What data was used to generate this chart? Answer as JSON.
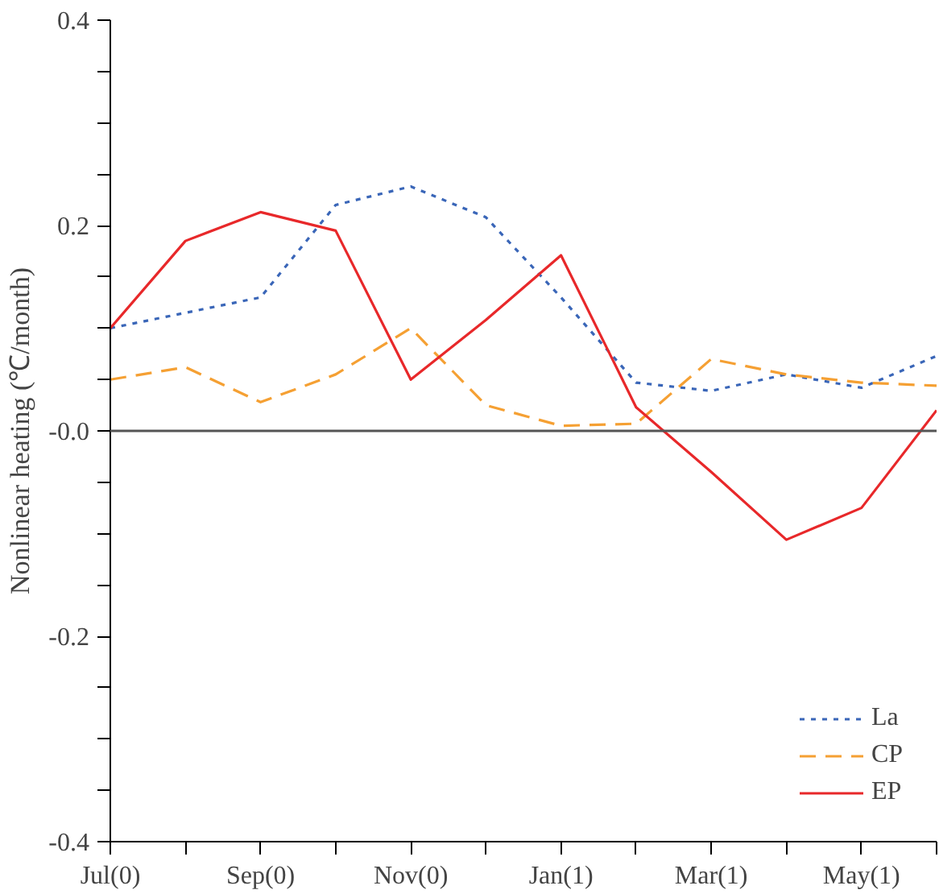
{
  "chart_data": {
    "type": "line",
    "ylabel": "Nonlinear heating (℃/month)",
    "categories": [
      "Jul(0)",
      null,
      "Sep(0)",
      null,
      "Nov(0)",
      null,
      "Jan(1)",
      null,
      "Mar(1)",
      null,
      "May(1)",
      null
    ],
    "ylim": [
      -0.4,
      0.4
    ],
    "yticks": [
      {
        "value": 0.4,
        "label": "0.4"
      },
      {
        "value": 0.35,
        "label": null
      },
      {
        "value": 0.3,
        "label": null
      },
      {
        "value": 0.25,
        "label": null
      },
      {
        "value": 0.2,
        "label": "0.2"
      },
      {
        "value": 0.15,
        "label": null
      },
      {
        "value": 0.1,
        "label": null
      },
      {
        "value": 0.05,
        "label": null
      },
      {
        "value": 0,
        "label": "-0.0"
      },
      {
        "value": -0.05,
        "label": null
      },
      {
        "value": -0.1,
        "label": null
      },
      {
        "value": -0.15,
        "label": null
      },
      {
        "value": -0.2,
        "label": "-0.2"
      },
      {
        "value": -0.25,
        "label": null
      },
      {
        "value": -0.3,
        "label": null
      },
      {
        "value": -0.35,
        "label": null
      },
      {
        "value": -0.4,
        "label": "-0.4"
      }
    ],
    "grid": false,
    "legend": "bottom right",
    "ref_lines": [
      {
        "axis": "y",
        "value": 0,
        "label": null,
        "color": "#555555"
      }
    ],
    "series": [
      {
        "name": "La",
        "color": "#3a66b8",
        "line_style": "dotted",
        "values": [
          0.1,
          0.115,
          0.13,
          0.22,
          0.238,
          0.208,
          0.13,
          0.047,
          0.039,
          0.055,
          0.042,
          0.073
        ]
      },
      {
        "name": "CP",
        "color": "#f5a033",
        "line_style": "dashed",
        "values": [
          0.05,
          0.062,
          0.028,
          0.055,
          0.1,
          0.025,
          0.005,
          0.007,
          0.07,
          0.055,
          0.047,
          0.044
        ]
      },
      {
        "name": "EP",
        "color": "#e8282a",
        "line_style": "solid",
        "values": [
          0.1,
          0.185,
          0.213,
          0.195,
          0.05,
          0.108,
          0.171,
          0.023,
          -0.04,
          -0.106,
          -0.075,
          0.02
        ]
      }
    ]
  }
}
